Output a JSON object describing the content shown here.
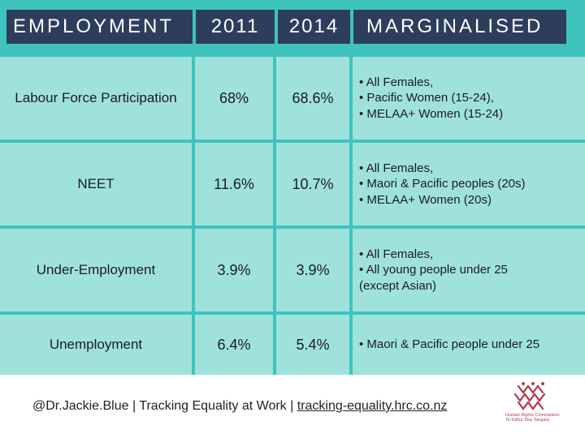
{
  "header": {
    "title": "EMPLOYMENT",
    "col_2011": "2011",
    "col_2014": "2014",
    "col_marginalised": "MARGINALISED"
  },
  "rows": [
    {
      "label": "Labour Force Participation",
      "v2011": "68%",
      "v2014": "68.6%",
      "marginalised": [
        "• All Females,",
        "• Pacific Women (15-24),",
        "• MELAA+ Women (15-24)"
      ]
    },
    {
      "label": "NEET",
      "v2011": "11.6%",
      "v2014": "10.7%",
      "marginalised": [
        "• All Females,",
        "• Maori & Pacific peoples (20s)",
        "• MELAA+ Women (20s)"
      ]
    },
    {
      "label": "Under-Employment",
      "v2011": "3.9%",
      "v2014": "3.9%",
      "marginalised": [
        "• All Females,",
        "• All young people under 25",
        "(except Asian)"
      ]
    },
    {
      "label": "Unemployment",
      "v2011": "6.4%",
      "v2014": "5.4%",
      "marginalised": [
        "• Maori & Pacific people under 25"
      ]
    }
  ],
  "footer": {
    "handle": "@Dr.Jackie.Blue",
    "sep1": " | ",
    "project": "Tracking Equality at Work",
    "sep2": " | ",
    "url": "tracking-equality.hrc.co.nz"
  },
  "logo": {
    "name": "Human Rights Commission",
    "subtitle": "Te Kāhui Tika Tangata"
  },
  "colors": {
    "header_bg": "#2d3e5c",
    "table_bg": "#3fc3bd",
    "cell_bg": "#9fe2dc",
    "logo_accent": "#b03a4e"
  }
}
